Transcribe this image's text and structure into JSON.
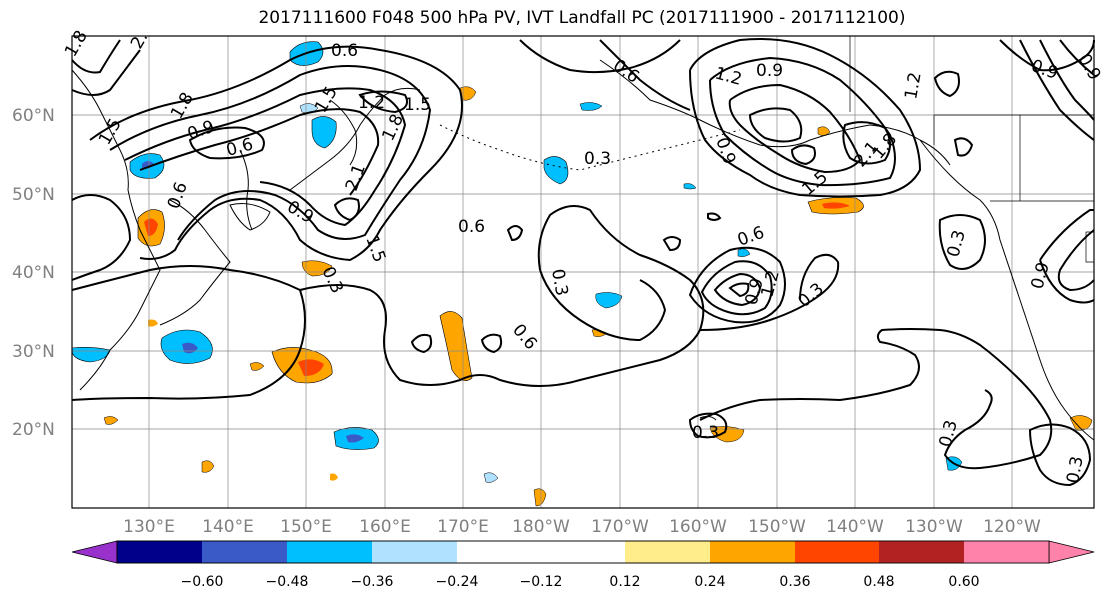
{
  "title": "2017111600 F048 500 hPa PV, IVT Landfall PC (2017111900 - 2017112100)",
  "latitude_labels": [
    "60°N",
    "50°N",
    "40°N",
    "30°N",
    "20°N"
  ],
  "longitude_labels": [
    "130°E",
    "140°E",
    "150°E",
    "160°E",
    "170°E",
    "180°W",
    "170°W",
    "160°W",
    "150°W",
    "140°W",
    "130°W",
    "120°W"
  ],
  "colorbar": {
    "colors": [
      "#9932cc",
      "#00008b",
      "#3a5bc7",
      "#00bfff",
      "#b0e2ff",
      "#ffffff",
      "#ffec8b",
      "#ffa500",
      "#ff4500",
      "#b22222",
      "#ff82ab"
    ],
    "tick_labels": [
      "−0.60",
      "−0.48",
      "−0.36",
      "−0.24",
      "−0.12",
      "0.12",
      "0.24",
      "0.36",
      "0.48",
      "0.60"
    ]
  },
  "contour_labels": [
    "1.8",
    "2.",
    "0.6",
    "1.2",
    "0.9",
    "1.5",
    "1.8",
    "0.9",
    "0.6",
    "1.5",
    "1.2",
    "1.5",
    "1.8",
    "2.1",
    "0.9",
    "0.3",
    "0.6",
    "0.6",
    "0.3",
    "0.6",
    "0.6",
    "0.9",
    "1.2",
    "0.9",
    "0.3",
    "1.8",
    "1.2",
    "0.9",
    "2.1",
    "1.5",
    "0.3",
    "0.3",
    "0.9",
    "0.3",
    "0.3",
    "0.3",
    "1.5",
    "0.9",
    "0.6"
  ]
}
